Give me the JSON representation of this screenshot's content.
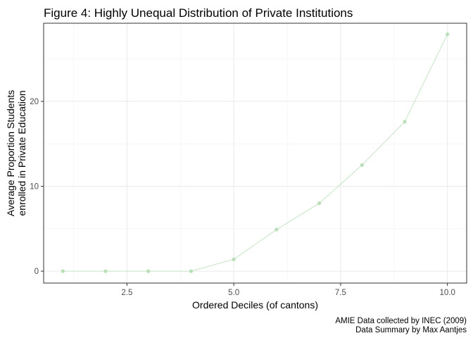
{
  "chart_data": {
    "type": "line",
    "title": "Figure 4: Highly Unequal Distribution of Private Institutions",
    "xlabel": "Ordered Deciles (of cantons)",
    "ylabel_line1": "Average Proportion Students",
    "ylabel_line2": "enrolled in Private Education",
    "caption_line1": "AMIE Data collected by INEC (2009)",
    "caption_line2": "Data Summary by Max Aantjes",
    "x_ticks": [
      2.5,
      5.0,
      7.5,
      10.0
    ],
    "x_tick_labels": [
      "2.5",
      "5.0",
      "7.5",
      "10.0"
    ],
    "y_ticks": [
      0,
      10,
      20
    ],
    "y_tick_labels": [
      "0",
      "10",
      "20"
    ],
    "xlim": [
      0.55,
      10.45
    ],
    "ylim": [
      -1.4,
      29.2
    ],
    "grid": true,
    "color": "#b8dfb6",
    "series": [
      {
        "x": [
          1,
          2,
          3,
          4,
          5,
          6,
          7,
          8,
          9,
          10
        ],
        "values": [
          0.0,
          0.0,
          0.0,
          0.0,
          1.4,
          4.9,
          8.0,
          12.5,
          17.6,
          27.9
        ]
      }
    ]
  }
}
